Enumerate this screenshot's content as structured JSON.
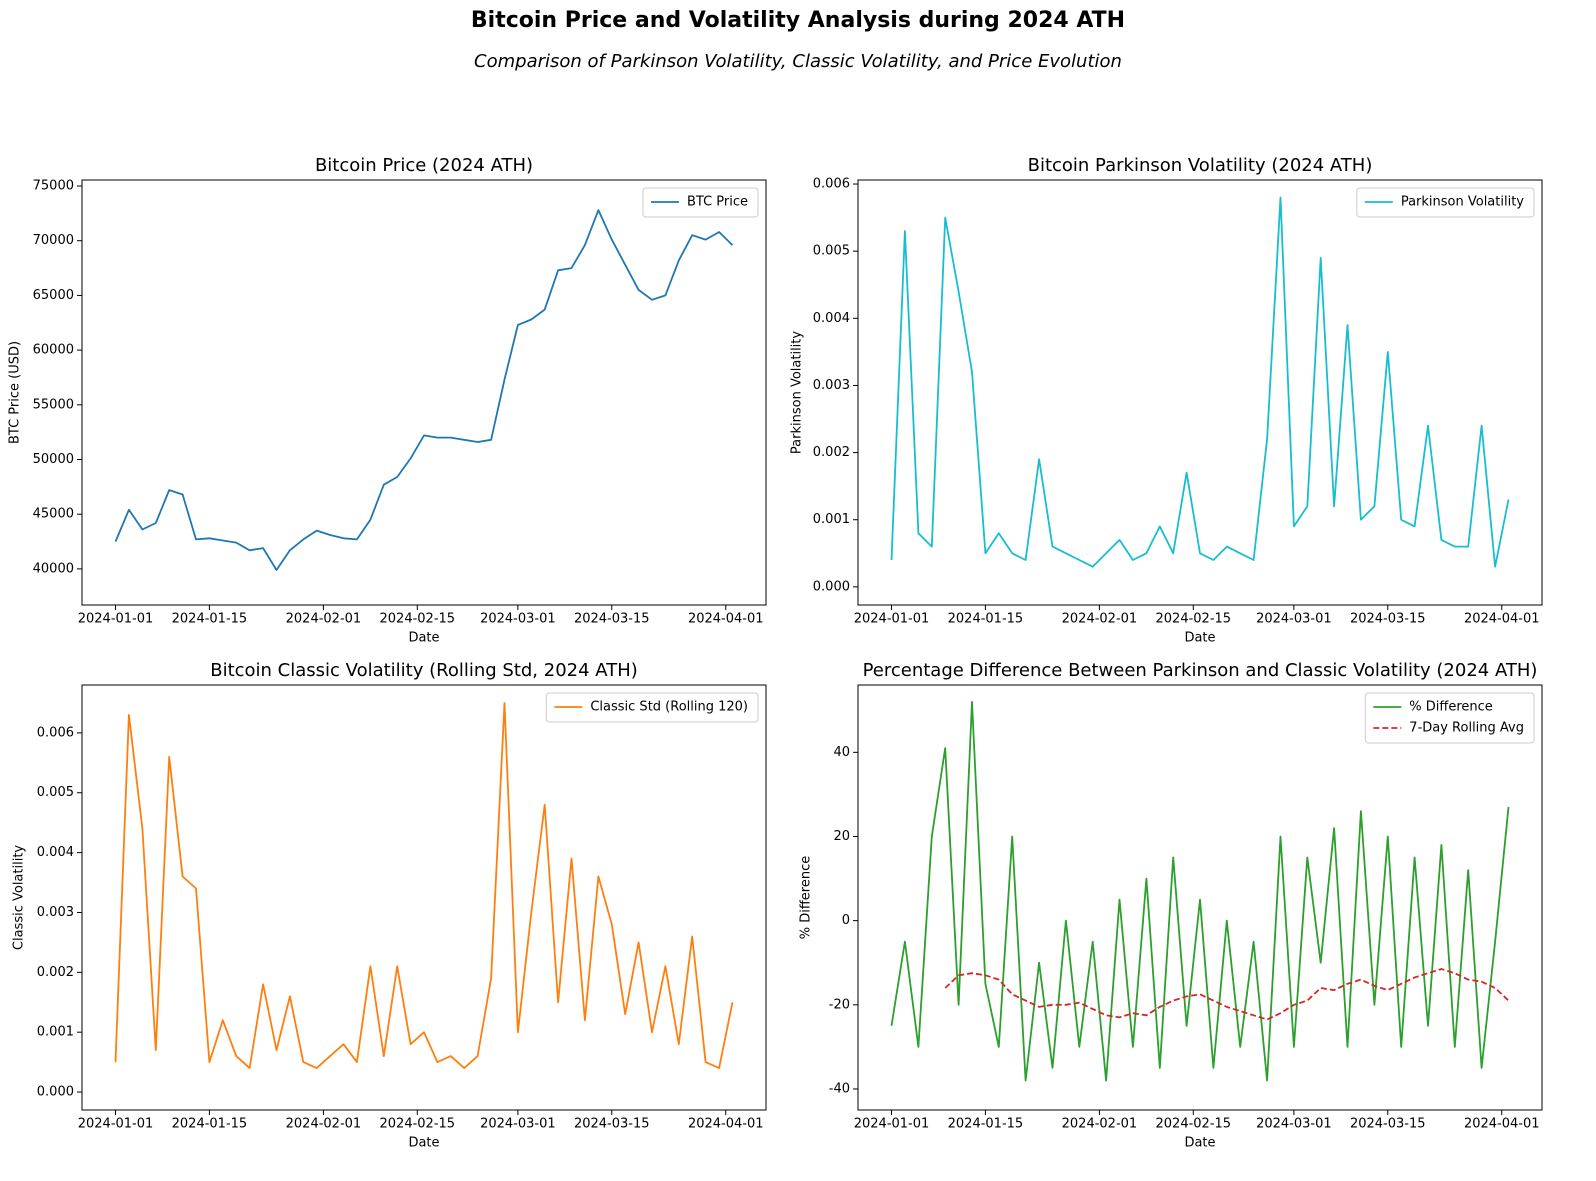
{
  "figure": {
    "title": "Bitcoin Price and Volatility Analysis during 2024 ATH",
    "subtitle": "Comparison of Parkinson Volatility, Classic Volatility, and Price Evolution"
  },
  "chart_data": [
    {
      "type": "line",
      "title": "Bitcoin Price (2024 ATH)",
      "xlabel": "Date",
      "ylabel": "BTC Price (USD)",
      "legend": "upper right",
      "x": [
        "2024-01-01",
        "2024-01-03",
        "2024-01-05",
        "2024-01-07",
        "2024-01-09",
        "2024-01-11",
        "2024-01-13",
        "2024-01-15",
        "2024-01-17",
        "2024-01-19",
        "2024-01-21",
        "2024-01-23",
        "2024-01-25",
        "2024-01-27",
        "2024-01-29",
        "2024-01-31",
        "2024-02-02",
        "2024-02-04",
        "2024-02-06",
        "2024-02-08",
        "2024-02-10",
        "2024-02-12",
        "2024-02-14",
        "2024-02-16",
        "2024-02-18",
        "2024-02-20",
        "2024-02-22",
        "2024-02-24",
        "2024-02-26",
        "2024-02-28",
        "2024-03-01",
        "2024-03-03",
        "2024-03-05",
        "2024-03-07",
        "2024-03-09",
        "2024-03-11",
        "2024-03-13",
        "2024-03-15",
        "2024-03-17",
        "2024-03-19",
        "2024-03-21",
        "2024-03-23",
        "2024-03-25",
        "2024-03-27",
        "2024-03-29",
        "2024-03-31",
        "2024-04-02"
      ],
      "series": [
        {
          "name": "BTC Price",
          "color": "#1f77b4",
          "values": [
            42500,
            45400,
            43600,
            44200,
            47200,
            46800,
            42700,
            42800,
            42600,
            42400,
            41700,
            41900,
            39900,
            41700,
            42700,
            43500,
            43100,
            42800,
            42700,
            44500,
            47700,
            48400,
            50100,
            52200,
            52000,
            52000,
            51800,
            51600,
            51800,
            57300,
            62300,
            62800,
            63700,
            67300,
            67500,
            69600,
            72800,
            70100,
            67800,
            65500,
            64600,
            65000,
            68200,
            70500,
            70100,
            70800,
            69600
          ]
        }
      ],
      "xlim": [
        "2023-12-27",
        "2024-04-07"
      ],
      "xticks": [
        "2024-01-01",
        "2024-01-15",
        "2024-02-01",
        "2024-02-15",
        "2024-03-01",
        "2024-03-15",
        "2024-04-01"
      ],
      "ylim": [
        36700,
        75550
      ],
      "yticks": [
        40000,
        45000,
        50000,
        55000,
        60000,
        65000,
        70000,
        75000
      ]
    },
    {
      "type": "line",
      "title": "Bitcoin Parkinson Volatility (2024 ATH)",
      "xlabel": "Date",
      "ylabel": "Parkinson Volatility",
      "legend": "upper right",
      "x": [
        "2024-01-01",
        "2024-01-03",
        "2024-01-05",
        "2024-01-07",
        "2024-01-09",
        "2024-01-11",
        "2024-01-13",
        "2024-01-15",
        "2024-01-17",
        "2024-01-19",
        "2024-01-21",
        "2024-01-23",
        "2024-01-25",
        "2024-01-27",
        "2024-01-29",
        "2024-01-31",
        "2024-02-02",
        "2024-02-04",
        "2024-02-06",
        "2024-02-08",
        "2024-02-10",
        "2024-02-12",
        "2024-02-14",
        "2024-02-16",
        "2024-02-18",
        "2024-02-20",
        "2024-02-22",
        "2024-02-24",
        "2024-02-26",
        "2024-02-28",
        "2024-03-01",
        "2024-03-03",
        "2024-03-05",
        "2024-03-07",
        "2024-03-09",
        "2024-03-11",
        "2024-03-13",
        "2024-03-15",
        "2024-03-17",
        "2024-03-19",
        "2024-03-21",
        "2024-03-23",
        "2024-03-25",
        "2024-03-27",
        "2024-03-29",
        "2024-03-31",
        "2024-04-02"
      ],
      "series": [
        {
          "name": "Parkinson Volatility",
          "color": "#17becf",
          "values": [
            0.0004,
            0.0053,
            0.0008,
            0.0006,
            0.0055,
            0.0044,
            0.0032,
            0.0005,
            0.0008,
            0.0005,
            0.0004,
            0.0019,
            0.0006,
            0.0005,
            0.0004,
            0.0003,
            0.0005,
            0.0007,
            0.0004,
            0.0005,
            0.0009,
            0.0005,
            0.0017,
            0.0005,
            0.0004,
            0.0006,
            0.0005,
            0.0004,
            0.0022,
            0.0058,
            0.0009,
            0.0012,
            0.0049,
            0.0012,
            0.0039,
            0.001,
            0.0012,
            0.0035,
            0.001,
            0.0009,
            0.0024,
            0.0007,
            0.0006,
            0.0006,
            0.0024,
            0.0003,
            0.0013
          ]
        }
      ],
      "xlim": [
        "2023-12-27",
        "2024-04-07"
      ],
      "xticks": [
        "2024-01-01",
        "2024-01-15",
        "2024-02-01",
        "2024-02-15",
        "2024-03-01",
        "2024-03-15",
        "2024-04-01"
      ],
      "ylim": [
        -0.00027,
        0.00606
      ],
      "yticks": [
        {
          "value": 0,
          "label": "0.000"
        },
        {
          "value": 0.001,
          "label": "0.001"
        },
        {
          "value": 0.002,
          "label": "0.002"
        },
        {
          "value": 0.003,
          "label": "0.003"
        },
        {
          "value": 0.004,
          "label": "0.004"
        },
        {
          "value": 0.005,
          "label": "0.005"
        },
        {
          "value": 0.006,
          "label": "0.006"
        }
      ]
    },
    {
      "type": "line",
      "title": "Bitcoin Classic Volatility (Rolling Std, 2024 ATH)",
      "xlabel": "Date",
      "ylabel": "Classic Volatility",
      "legend": "upper right",
      "x": [
        "2024-01-01",
        "2024-01-03",
        "2024-01-05",
        "2024-01-07",
        "2024-01-09",
        "2024-01-11",
        "2024-01-13",
        "2024-01-15",
        "2024-01-17",
        "2024-01-19",
        "2024-01-21",
        "2024-01-23",
        "2024-01-25",
        "2024-01-27",
        "2024-01-29",
        "2024-01-31",
        "2024-02-02",
        "2024-02-04",
        "2024-02-06",
        "2024-02-08",
        "2024-02-10",
        "2024-02-12",
        "2024-02-14",
        "2024-02-16",
        "2024-02-18",
        "2024-02-20",
        "2024-02-22",
        "2024-02-24",
        "2024-02-26",
        "2024-02-28",
        "2024-03-01",
        "2024-03-03",
        "2024-03-05",
        "2024-03-07",
        "2024-03-09",
        "2024-03-11",
        "2024-03-13",
        "2024-03-15",
        "2024-03-17",
        "2024-03-19",
        "2024-03-21",
        "2024-03-23",
        "2024-03-25",
        "2024-03-27",
        "2024-03-29",
        "2024-03-31",
        "2024-04-02"
      ],
      "series": [
        {
          "name": "Classic Std (Rolling 120)",
          "color": "#ff7f0e",
          "values": [
            0.0005,
            0.0063,
            0.0044,
            0.0007,
            0.0056,
            0.0036,
            0.0034,
            0.0005,
            0.0012,
            0.0006,
            0.0004,
            0.0018,
            0.0007,
            0.0016,
            0.0005,
            0.0004,
            0.0006,
            0.0008,
            0.0005,
            0.0021,
            0.0006,
            0.0021,
            0.0008,
            0.001,
            0.0005,
            0.0006,
            0.0004,
            0.0006,
            0.0019,
            0.0065,
            0.001,
            0.003,
            0.0048,
            0.0015,
            0.0039,
            0.0012,
            0.0036,
            0.0028,
            0.0013,
            0.0025,
            0.001,
            0.0021,
            0.0008,
            0.0026,
            0.0005,
            0.0004,
            0.0015
          ]
        }
      ],
      "xlim": [
        "2023-12-27",
        "2024-04-07"
      ],
      "xticks": [
        "2024-01-01",
        "2024-01-15",
        "2024-02-01",
        "2024-02-15",
        "2024-03-01",
        "2024-03-15",
        "2024-04-01"
      ],
      "ylim": [
        -0.0003,
        0.0068
      ],
      "yticks": [
        {
          "value": 0,
          "label": "0.000"
        },
        {
          "value": 0.001,
          "label": "0.001"
        },
        {
          "value": 0.002,
          "label": "0.002"
        },
        {
          "value": 0.003,
          "label": "0.003"
        },
        {
          "value": 0.004,
          "label": "0.004"
        },
        {
          "value": 0.005,
          "label": "0.005"
        },
        {
          "value": 0.006,
          "label": "0.006"
        }
      ]
    },
    {
      "type": "line",
      "title": "Percentage Difference Between Parkinson and Classic Volatility (2024 ATH)",
      "xlabel": "Date",
      "ylabel": "% Difference",
      "legend": "upper right",
      "x": [
        "2024-01-01",
        "2024-01-03",
        "2024-01-05",
        "2024-01-07",
        "2024-01-09",
        "2024-01-11",
        "2024-01-13",
        "2024-01-15",
        "2024-01-17",
        "2024-01-19",
        "2024-01-21",
        "2024-01-23",
        "2024-01-25",
        "2024-01-27",
        "2024-01-29",
        "2024-01-31",
        "2024-02-02",
        "2024-02-04",
        "2024-02-06",
        "2024-02-08",
        "2024-02-10",
        "2024-02-12",
        "2024-02-14",
        "2024-02-16",
        "2024-02-18",
        "2024-02-20",
        "2024-02-22",
        "2024-02-24",
        "2024-02-26",
        "2024-02-28",
        "2024-03-01",
        "2024-03-03",
        "2024-03-05",
        "2024-03-07",
        "2024-03-09",
        "2024-03-11",
        "2024-03-13",
        "2024-03-15",
        "2024-03-17",
        "2024-03-19",
        "2024-03-21",
        "2024-03-23",
        "2024-03-25",
        "2024-03-27",
        "2024-03-29",
        "2024-03-31",
        "2024-04-02"
      ],
      "series": [
        {
          "name": "% Difference",
          "color": "#2ca02c",
          "values": [
            -25,
            -5,
            -30,
            20,
            41,
            -20,
            52,
            -15,
            -30,
            20,
            -38,
            -10,
            -35,
            0,
            -30,
            -5,
            -38,
            5,
            -30,
            10,
            -35,
            15,
            -25,
            5,
            -35,
            0,
            -30,
            -5,
            -38,
            20,
            -30,
            15,
            -10,
            22,
            -30,
            26,
            -20,
            20,
            -30,
            15,
            -25,
            18,
            -30,
            12,
            -35,
            -5,
            27
          ]
        },
        {
          "name": "7-Day Rolling Avg",
          "color": "#d62728",
          "dash": "dashed",
          "values": [
            null,
            null,
            null,
            null,
            -16,
            -13,
            -12.5,
            -13,
            -14,
            -17.5,
            -19,
            -20.5,
            -20,
            -20,
            -19.5,
            -21,
            -22.5,
            -23,
            -22,
            -22.5,
            -20.5,
            -19,
            -18,
            -17.5,
            -19,
            -20.5,
            -21.5,
            -22.5,
            -23.5,
            -22,
            -20,
            -19,
            -16,
            -16.5,
            -15,
            -14,
            -15.5,
            -16.5,
            -15,
            -13.5,
            -12.5,
            -11.5,
            -12.5,
            -14,
            -14.5,
            -16,
            -19
          ]
        }
      ],
      "xlim": [
        "2023-12-27",
        "2024-04-07"
      ],
      "xticks": [
        "2024-01-01",
        "2024-01-15",
        "2024-02-01",
        "2024-02-15",
        "2024-03-01",
        "2024-03-15",
        "2024-04-01"
      ],
      "ylim": [
        -45,
        56
      ],
      "yticks": [
        -40,
        -20,
        0,
        20,
        40
      ]
    }
  ]
}
